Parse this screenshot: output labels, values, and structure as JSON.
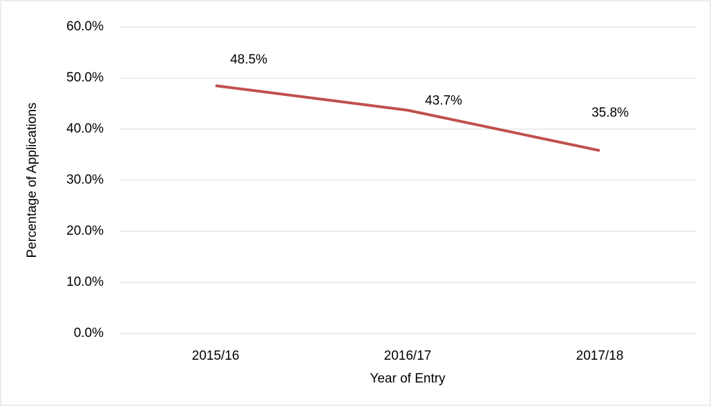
{
  "chart_data": {
    "type": "line",
    "categories": [
      "2015/16",
      "2016/17",
      "2017/18"
    ],
    "series": [
      {
        "name": "Percentage of Applications",
        "color": "#c0504d",
        "values": [
          48.5,
          43.7,
          35.8
        ],
        "value_labels": [
          "48.5%",
          "43.7%",
          "35.8%"
        ]
      }
    ],
    "ylabel": "Percentage of Applications",
    "xlabel": "Year of Entry",
    "ylim": [
      0,
      60
    ],
    "yticks": [
      {
        "value": 0,
        "label": "0.0%"
      },
      {
        "value": 10,
        "label": "10.0%"
      },
      {
        "value": 20,
        "label": "20.0%"
      },
      {
        "value": 30,
        "label": "30.0%"
      },
      {
        "value": 40,
        "label": "40.0%"
      },
      {
        "value": 50,
        "label": "50.0%"
      },
      {
        "value": 60,
        "label": "60.0%"
      }
    ],
    "grid": true
  }
}
